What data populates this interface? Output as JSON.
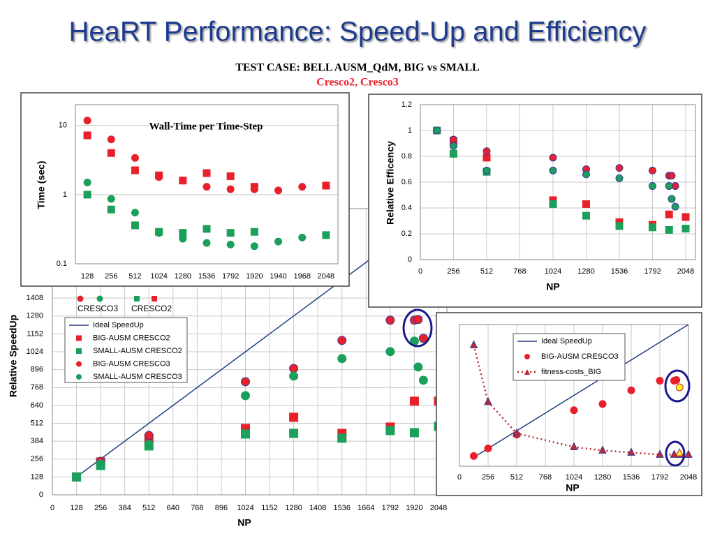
{
  "title": "HeaRT Performance: Speed-Up and Efficiency",
  "subtitle": "TEST CASE: BELL AUSM_QdM, BIG vs SMALL",
  "subtitle2": "Cresco2, Cresco3",
  "chart_data": [
    {
      "type": "scatter",
      "xlabel": "NP",
      "ylabel": "Relative SpeedUp",
      "xlim": [
        0,
        2048
      ],
      "ylim": [
        0,
        2048
      ],
      "xticks": [
        0,
        128,
        256,
        384,
        512,
        640,
        768,
        896,
        1024,
        1152,
        1280,
        1408,
        1536,
        1664,
        1792,
        1920,
        2048
      ],
      "yticks": [
        0,
        128,
        256,
        384,
        512,
        640,
        768,
        896,
        1024,
        1152,
        1280,
        1408
      ],
      "grid": true,
      "legend_groups": [
        "CRESCO3",
        "CRESCO2"
      ],
      "series": [
        {
          "name": "Ideal SpeedUp",
          "color": "#1f3f7a",
          "marker": "line",
          "x": [
            128,
            2048
          ],
          "values": [
            128,
            2048
          ]
        },
        {
          "name": "BIG-AUSM CRESCO2",
          "color": "#e8202a",
          "marker": "square",
          "x": [
            128,
            256,
            512,
            1024,
            1280,
            1536,
            1792,
            1920,
            2048
          ],
          "values": [
            128,
            235,
            400,
            475,
            555,
            440,
            485,
            670,
            670
          ]
        },
        {
          "name": "SMALL-AUSM CRESCO2",
          "color": "#1aa05a",
          "marker": "square",
          "x": [
            128,
            256,
            512,
            1024,
            1280,
            1536,
            1792,
            1920,
            2048
          ],
          "values": [
            128,
            210,
            350,
            435,
            440,
            405,
            460,
            445,
            490
          ]
        },
        {
          "name": "BIG-AUSM CRESCO3",
          "color": "#e8202a",
          "edge": "#3b3b9e",
          "marker": "circle",
          "x": [
            256,
            512,
            1024,
            1280,
            1536,
            1792,
            1920,
            1940,
            1968
          ],
          "values": [
            240,
            425,
            810,
            905,
            1105,
            1250,
            1250,
            1255,
            1120
          ]
        },
        {
          "name": "SMALL-AUSM CRESCO3",
          "color": "#1aa05a",
          "marker": "circle",
          "x": [
            256,
            512,
            1024,
            1280,
            1536,
            1792,
            1920,
            1940,
            1968
          ],
          "values": [
            220,
            360,
            710,
            850,
            975,
            1025,
            1100,
            915,
            820
          ]
        }
      ]
    },
    {
      "type": "scatter",
      "title": "Wall-Time per Time-Step",
      "ylabel": "Time (sec)",
      "ylog": true,
      "ylim": [
        0.1,
        20
      ],
      "yticks": [
        0.1,
        1,
        10
      ],
      "grid": true,
      "categories": [
        "128",
        "256",
        "512",
        "1024",
        "1280",
        "1536",
        "1792",
        "1920",
        "1940",
        "1968",
        "2048"
      ],
      "series": [
        {
          "color": "#e8202a",
          "marker": "circle",
          "values": [
            11.8,
            6.3,
            3.4,
            1.8,
            1.6,
            1.3,
            1.2,
            1.2,
            1.15,
            1.3,
            null
          ]
        },
        {
          "color": "#e8202a",
          "marker": "square",
          "values": [
            7.2,
            4.0,
            2.25,
            1.9,
            1.6,
            2.05,
            1.85,
            1.3,
            null,
            null,
            1.35
          ]
        },
        {
          "color": "#1aa05a",
          "marker": "circle",
          "values": [
            1.5,
            0.87,
            0.55,
            0.28,
            0.23,
            0.2,
            0.19,
            0.18,
            0.21,
            0.24,
            null
          ]
        },
        {
          "color": "#1aa05a",
          "marker": "square",
          "values": [
            1.0,
            0.61,
            0.36,
            0.29,
            0.28,
            0.32,
            0.28,
            0.29,
            null,
            null,
            0.26
          ]
        }
      ]
    },
    {
      "type": "scatter",
      "xlabel": "NP",
      "ylabel": "Relative Efficency",
      "xlim": [
        0,
        2048
      ],
      "ylim": [
        0,
        1.2
      ],
      "xticks": [
        0,
        256,
        512,
        768,
        1024,
        1280,
        1536,
        1792,
        2048
      ],
      "yticks": [
        0,
        0.2,
        0.4,
        0.6,
        0.8,
        1,
        1.2
      ],
      "grid": true,
      "series": [
        {
          "color": "#e8202a",
          "marker": "square",
          "x": [
            128,
            256,
            512,
            1024,
            1280,
            1536,
            1792,
            1920,
            2048
          ],
          "values": [
            1.0,
            0.92,
            0.79,
            0.46,
            0.43,
            0.29,
            0.27,
            0.35,
            0.33
          ]
        },
        {
          "color": "#1aa05a",
          "marker": "square",
          "x": [
            128,
            256,
            512,
            1024,
            1280,
            1536,
            1792,
            1920,
            2048
          ],
          "values": [
            1.0,
            0.82,
            0.68,
            0.43,
            0.34,
            0.26,
            0.25,
            0.23,
            0.24
          ]
        },
        {
          "color": "#e8202a",
          "edge": "#3b3b9e",
          "marker": "circle",
          "x": [
            128,
            256,
            512,
            1024,
            1280,
            1536,
            1792,
            1920,
            1940,
            1968
          ],
          "values": [
            1.0,
            0.93,
            0.84,
            0.79,
            0.7,
            0.71,
            0.69,
            0.65,
            0.65,
            0.57
          ]
        },
        {
          "color": "#1aa05a",
          "edge": "#3b3b9e",
          "marker": "circle",
          "x": [
            128,
            256,
            512,
            1024,
            1280,
            1536,
            1792,
            1920,
            1940,
            1968
          ],
          "values": [
            1.0,
            0.88,
            0.69,
            0.69,
            0.66,
            0.63,
            0.57,
            0.57,
            0.47,
            0.41
          ]
        }
      ]
    },
    {
      "type": "scatter",
      "xlabel": "NP",
      "xlim": [
        0,
        2048
      ],
      "ylim": [
        0,
        2048
      ],
      "xticks": [
        0,
        256,
        512,
        768,
        1024,
        1280,
        1536,
        1792,
        2048
      ],
      "grid": true,
      "series": [
        {
          "name": "Ideal SpeedUp",
          "color": "#1f3f7a",
          "marker": "line",
          "x": [
            128,
            2048
          ],
          "values": [
            128,
            2048
          ]
        },
        {
          "name": "BIG-AUSM CRESCO3",
          "color": "#e8202a",
          "marker": "circle",
          "x": [
            128,
            256,
            512,
            1024,
            1280,
            1536,
            1792,
            1920,
            1940
          ],
          "values": [
            148,
            257,
            455,
            810,
            899,
            1097,
            1236,
            1236,
            1246
          ]
        },
        {
          "name": "fitness-costs_BIG",
          "color": "#c0282e",
          "edge": "#3b3b9e",
          "marker": "triangle",
          "line_style": "dotted",
          "x": [
            128,
            256,
            512,
            1024,
            1280,
            1536,
            1792,
            1920,
            1968,
            2048
          ],
          "values": [
            1750,
            930,
            475,
            277,
            228,
            198,
            168,
            168,
            168,
            168
          ]
        }
      ],
      "highlights": [
        {
          "x": 1968,
          "value": 1140,
          "color": "#ffee22",
          "marker": "circle"
        },
        {
          "x": 1968,
          "value": 190,
          "color": "#ffee22",
          "marker": "triangle"
        }
      ]
    }
  ]
}
